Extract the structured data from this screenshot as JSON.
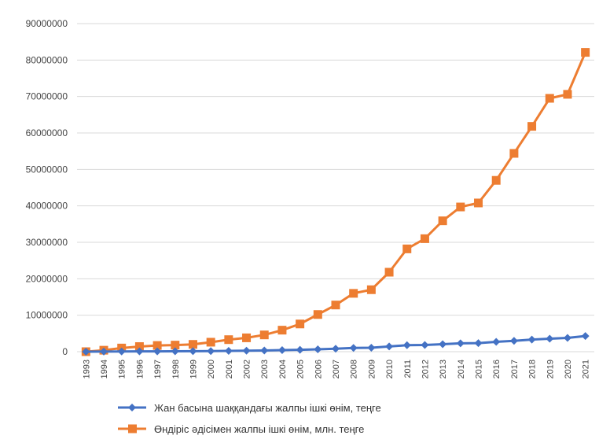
{
  "chart_data": {
    "type": "line",
    "categories": [
      "1993",
      "1994",
      "1995",
      "1996",
      "1997",
      "1998",
      "1999",
      "2000",
      "2001",
      "2002",
      "2003",
      "2004",
      "2005",
      "2006",
      "2007",
      "2008",
      "2009",
      "2010",
      "2011",
      "2012",
      "2013",
      "2014",
      "2015",
      "2016",
      "2017",
      "2018",
      "2019",
      "2020",
      "2021"
    ],
    "ylim": [
      0,
      90000000
    ],
    "yticks": [
      "0",
      "10000000",
      "20000000",
      "30000000",
      "40000000",
      "50000000",
      "60000000",
      "70000000",
      "80000000",
      "90000000"
    ],
    "grid": true,
    "legend_position": "bottom",
    "series": [
      {
        "name": "Жан басына шаққандағы жалпы ішкі өнім, теңге",
        "color": "#4472C4",
        "marker": "diamond",
        "values": [
          0,
          20000,
          60000,
          70000,
          90000,
          100000,
          130000,
          170000,
          220000,
          260000,
          330000,
          420000,
          510000,
          660000,
          810000,
          1020000,
          1080000,
          1420000,
          1790000,
          1840000,
          2050000,
          2300000,
          2340000,
          2700000,
          2980000,
          3320000,
          3550000,
          3770000,
          4300000
        ]
      },
      {
        "name": "Өндіріс әдісімен жалпы ішкі өнім, млн. теңге",
        "color": "#ED7D31",
        "marker": "square",
        "values": [
          0,
          400000,
          1000000,
          1400000,
          1700000,
          1800000,
          2000000,
          2600000,
          3300000,
          3800000,
          4600000,
          5900000,
          7600000,
          10200000,
          12800000,
          16000000,
          17000000,
          21800000,
          28200000,
          31000000,
          35900000,
          39700000,
          40800000,
          47000000,
          54400000,
          61800000,
          69500000,
          70600000,
          82100000
        ]
      }
    ]
  }
}
